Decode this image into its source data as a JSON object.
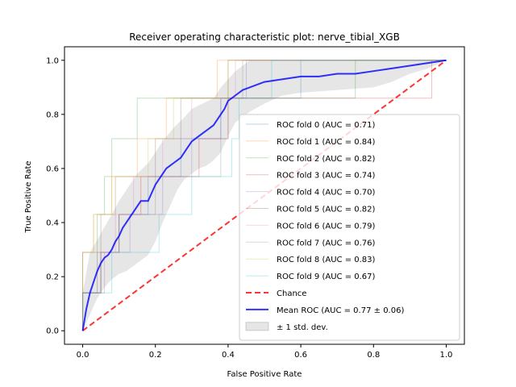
{
  "chart_data": {
    "type": "line",
    "title": "Receiver operating characteristic plot: nerve_tibial_XGB",
    "xlabel": "False Positive Rate",
    "ylabel": "True Positive Rate",
    "xlim": [
      -0.05,
      1.05
    ],
    "ylim": [
      -0.05,
      1.05
    ],
    "xticks": [
      "0.0",
      "0.2",
      "0.4",
      "0.6",
      "0.8",
      "1.0"
    ],
    "yticks": [
      "0.0",
      "0.2",
      "0.4",
      "0.6",
      "0.8",
      "1.0"
    ],
    "grid": false,
    "legend_position": "lower right",
    "series": [
      {
        "name": "ROC fold 0 (AUC = 0.71)",
        "color": "#1f77b4",
        "opacity": 0.3,
        "width": 1,
        "points": [
          [
            0,
            0
          ],
          [
            0,
            0.14
          ],
          [
            0.05,
            0.14
          ],
          [
            0.05,
            0.29
          ],
          [
            0.1,
            0.29
          ],
          [
            0.1,
            0.43
          ],
          [
            0.18,
            0.43
          ],
          [
            0.18,
            0.57
          ],
          [
            0.27,
            0.57
          ],
          [
            0.27,
            0.71
          ],
          [
            0.38,
            0.71
          ],
          [
            0.38,
            0.86
          ],
          [
            0.6,
            0.86
          ],
          [
            0.6,
            1.0
          ],
          [
            1,
            1
          ]
        ]
      },
      {
        "name": "ROC fold 1 (AUC = 0.84)",
        "color": "#ff7f0e",
        "opacity": 0.3,
        "width": 1,
        "points": [
          [
            0,
            0
          ],
          [
            0,
            0.29
          ],
          [
            0.03,
            0.29
          ],
          [
            0.03,
            0.43
          ],
          [
            0.08,
            0.43
          ],
          [
            0.08,
            0.57
          ],
          [
            0.15,
            0.57
          ],
          [
            0.15,
            0.71
          ],
          [
            0.23,
            0.71
          ],
          [
            0.23,
            0.86
          ],
          [
            0.37,
            0.86
          ],
          [
            0.37,
            1.0
          ],
          [
            1,
            1
          ]
        ]
      },
      {
        "name": "ROC fold 2 (AUC = 0.82)",
        "color": "#2ca02c",
        "opacity": 0.3,
        "width": 1,
        "points": [
          [
            0,
            0
          ],
          [
            0,
            0.14
          ],
          [
            0.04,
            0.14
          ],
          [
            0.04,
            0.43
          ],
          [
            0.06,
            0.43
          ],
          [
            0.06,
            0.57
          ],
          [
            0.08,
            0.57
          ],
          [
            0.08,
            0.71
          ],
          [
            0.15,
            0.71
          ],
          [
            0.15,
            0.86
          ],
          [
            0.75,
            0.86
          ],
          [
            0.75,
            1.0
          ],
          [
            1,
            1
          ]
        ]
      },
      {
        "name": "ROC fold 3 (AUC = 0.74)",
        "color": "#d62728",
        "opacity": 0.3,
        "width": 1,
        "points": [
          [
            0,
            0
          ],
          [
            0,
            0.14
          ],
          [
            0.05,
            0.14
          ],
          [
            0.05,
            0.29
          ],
          [
            0.1,
            0.29
          ],
          [
            0.1,
            0.43
          ],
          [
            0.16,
            0.43
          ],
          [
            0.16,
            0.57
          ],
          [
            0.32,
            0.57
          ],
          [
            0.32,
            0.71
          ],
          [
            0.4,
            0.71
          ],
          [
            0.4,
            0.86
          ],
          [
            0.96,
            0.86
          ],
          [
            0.96,
            1.0
          ],
          [
            1,
            1
          ]
        ]
      },
      {
        "name": "ROC fold 4 (AUC = 0.70)",
        "color": "#9467bd",
        "opacity": 0.3,
        "width": 1,
        "points": [
          [
            0,
            0
          ],
          [
            0,
            0.14
          ],
          [
            0.06,
            0.14
          ],
          [
            0.06,
            0.29
          ],
          [
            0.13,
            0.29
          ],
          [
            0.13,
            0.43
          ],
          [
            0.22,
            0.43
          ],
          [
            0.22,
            0.57
          ],
          [
            0.3,
            0.57
          ],
          [
            0.3,
            0.71
          ],
          [
            0.38,
            0.71
          ],
          [
            0.38,
            0.86
          ],
          [
            0.45,
            0.86
          ],
          [
            0.45,
            1.0
          ],
          [
            1,
            1
          ]
        ]
      },
      {
        "name": "ROC fold 5 (AUC = 0.82)",
        "color": "#8c564b",
        "opacity": 0.3,
        "width": 1,
        "points": [
          [
            0,
            0
          ],
          [
            0,
            0.29
          ],
          [
            0.05,
            0.29
          ],
          [
            0.05,
            0.43
          ],
          [
            0.09,
            0.43
          ],
          [
            0.09,
            0.57
          ],
          [
            0.2,
            0.57
          ],
          [
            0.2,
            0.71
          ],
          [
            0.27,
            0.71
          ],
          [
            0.27,
            0.86
          ],
          [
            0.4,
            0.86
          ],
          [
            0.4,
            1.0
          ],
          [
            1,
            1
          ]
        ]
      },
      {
        "name": "ROC fold 6 (AUC = 0.79)",
        "color": "#e377c2",
        "opacity": 0.3,
        "width": 1,
        "points": [
          [
            0,
            0
          ],
          [
            0,
            0.14
          ],
          [
            0.04,
            0.14
          ],
          [
            0.04,
            0.29
          ],
          [
            0.09,
            0.29
          ],
          [
            0.09,
            0.43
          ],
          [
            0.14,
            0.43
          ],
          [
            0.14,
            0.57
          ],
          [
            0.22,
            0.57
          ],
          [
            0.22,
            0.71
          ],
          [
            0.3,
            0.71
          ],
          [
            0.3,
            0.86
          ],
          [
            0.42,
            0.86
          ],
          [
            0.42,
            1.0
          ],
          [
            1,
            1
          ]
        ]
      },
      {
        "name": "ROC fold 7 (AUC = 0.76)",
        "color": "#7f7f7f",
        "opacity": 0.3,
        "width": 1,
        "points": [
          [
            0,
            0
          ],
          [
            0,
            0.14
          ],
          [
            0.05,
            0.14
          ],
          [
            0.05,
            0.29
          ],
          [
            0.1,
            0.29
          ],
          [
            0.1,
            0.43
          ],
          [
            0.2,
            0.43
          ],
          [
            0.2,
            0.57
          ],
          [
            0.38,
            0.57
          ],
          [
            0.38,
            0.71
          ],
          [
            0.4,
            0.71
          ],
          [
            0.4,
            0.86
          ],
          [
            0.44,
            0.86
          ],
          [
            0.44,
            1.0
          ],
          [
            1,
            1
          ]
        ]
      },
      {
        "name": "ROC fold 8 (AUC = 0.83)",
        "color": "#bcbd22",
        "opacity": 0.3,
        "width": 1,
        "points": [
          [
            0,
            0
          ],
          [
            0,
            0.29
          ],
          [
            0.03,
            0.29
          ],
          [
            0.03,
            0.43
          ],
          [
            0.08,
            0.43
          ],
          [
            0.08,
            0.57
          ],
          [
            0.18,
            0.57
          ],
          [
            0.18,
            0.71
          ],
          [
            0.25,
            0.71
          ],
          [
            0.25,
            0.86
          ],
          [
            0.4,
            0.86
          ],
          [
            0.4,
            1.0
          ],
          [
            1,
            1
          ]
        ]
      },
      {
        "name": "ROC fold 9 (AUC = 0.67)",
        "color": "#17becf",
        "opacity": 0.3,
        "width": 1,
        "points": [
          [
            0,
            0
          ],
          [
            0,
            0.14
          ],
          [
            0.08,
            0.14
          ],
          [
            0.08,
            0.29
          ],
          [
            0.21,
            0.29
          ],
          [
            0.21,
            0.43
          ],
          [
            0.3,
            0.43
          ],
          [
            0.3,
            0.57
          ],
          [
            0.41,
            0.57
          ],
          [
            0.41,
            0.71
          ],
          [
            0.43,
            0.71
          ],
          [
            0.43,
            0.86
          ],
          [
            0.52,
            0.86
          ],
          [
            0.52,
            1.0
          ],
          [
            1,
            1
          ]
        ]
      },
      {
        "name": "Chance",
        "color": "#ff0000",
        "opacity": 0.8,
        "width": 2,
        "dash": "7,4",
        "points": [
          [
            0,
            0
          ],
          [
            1,
            1
          ]
        ]
      },
      {
        "name": "Mean ROC (AUC = 0.77 ± 0.06)",
        "color": "#0000ff",
        "opacity": 0.8,
        "width": 2,
        "points": [
          [
            0,
            0
          ],
          [
            0.01,
            0.08
          ],
          [
            0.02,
            0.14
          ],
          [
            0.03,
            0.18
          ],
          [
            0.04,
            0.22
          ],
          [
            0.05,
            0.25
          ],
          [
            0.06,
            0.27
          ],
          [
            0.07,
            0.28
          ],
          [
            0.08,
            0.3
          ],
          [
            0.09,
            0.33
          ],
          [
            0.1,
            0.35
          ],
          [
            0.11,
            0.38
          ],
          [
            0.12,
            0.4
          ],
          [
            0.13,
            0.42
          ],
          [
            0.14,
            0.44
          ],
          [
            0.15,
            0.46
          ],
          [
            0.16,
            0.48
          ],
          [
            0.17,
            0.48
          ],
          [
            0.18,
            0.48
          ],
          [
            0.19,
            0.51
          ],
          [
            0.2,
            0.54
          ],
          [
            0.21,
            0.56
          ],
          [
            0.22,
            0.58
          ],
          [
            0.23,
            0.6
          ],
          [
            0.24,
            0.61
          ],
          [
            0.25,
            0.62
          ],
          [
            0.26,
            0.63
          ],
          [
            0.27,
            0.64
          ],
          [
            0.28,
            0.66
          ],
          [
            0.29,
            0.68
          ],
          [
            0.3,
            0.7
          ],
          [
            0.31,
            0.71
          ],
          [
            0.32,
            0.72
          ],
          [
            0.33,
            0.73
          ],
          [
            0.34,
            0.74
          ],
          [
            0.35,
            0.75
          ],
          [
            0.36,
            0.76
          ],
          [
            0.37,
            0.78
          ],
          [
            0.38,
            0.8
          ],
          [
            0.39,
            0.82
          ],
          [
            0.4,
            0.85
          ],
          [
            0.42,
            0.87
          ],
          [
            0.44,
            0.89
          ],
          [
            0.46,
            0.9
          ],
          [
            0.48,
            0.91
          ],
          [
            0.5,
            0.92
          ],
          [
            0.55,
            0.93
          ],
          [
            0.6,
            0.94
          ],
          [
            0.65,
            0.94
          ],
          [
            0.7,
            0.95
          ],
          [
            0.75,
            0.95
          ],
          [
            0.8,
            0.96
          ],
          [
            0.85,
            0.97
          ],
          [
            0.9,
            0.98
          ],
          [
            0.95,
            0.99
          ],
          [
            1.0,
            1.0
          ]
        ]
      }
    ],
    "band": {
      "name": "± 1 std. dev.",
      "color": "#808080",
      "opacity": 0.2,
      "upper": [
        [
          0,
          0
        ],
        [
          0,
          0.14
        ],
        [
          0.02,
          0.29
        ],
        [
          0.05,
          0.36
        ],
        [
          0.08,
          0.43
        ],
        [
          0.1,
          0.48
        ],
        [
          0.12,
          0.52
        ],
        [
          0.15,
          0.58
        ],
        [
          0.18,
          0.62
        ],
        [
          0.2,
          0.66
        ],
        [
          0.22,
          0.7
        ],
        [
          0.25,
          0.75
        ],
        [
          0.28,
          0.79
        ],
        [
          0.3,
          0.82
        ],
        [
          0.33,
          0.84
        ],
        [
          0.36,
          0.86
        ],
        [
          0.38,
          0.9
        ],
        [
          0.4,
          0.93
        ],
        [
          0.42,
          0.96
        ],
        [
          0.44,
          0.98
        ],
        [
          0.46,
          1.0
        ],
        [
          0.5,
          1.0
        ],
        [
          0.6,
          1.0
        ],
        [
          0.7,
          1.0
        ],
        [
          0.8,
          1.0
        ],
        [
          0.9,
          1.0
        ],
        [
          1.0,
          1.0
        ]
      ],
      "lower": [
        [
          1.0,
          1.0
        ],
        [
          0.95,
          0.97
        ],
        [
          0.9,
          0.95
        ],
        [
          0.85,
          0.92
        ],
        [
          0.8,
          0.9
        ],
        [
          0.7,
          0.89
        ],
        [
          0.6,
          0.88
        ],
        [
          0.55,
          0.87
        ],
        [
          0.5,
          0.84
        ],
        [
          0.46,
          0.81
        ],
        [
          0.44,
          0.79
        ],
        [
          0.42,
          0.77
        ],
        [
          0.4,
          0.72
        ],
        [
          0.38,
          0.66
        ],
        [
          0.36,
          0.63
        ],
        [
          0.34,
          0.61
        ],
        [
          0.32,
          0.6
        ],
        [
          0.3,
          0.58
        ],
        [
          0.28,
          0.56
        ],
        [
          0.26,
          0.52
        ],
        [
          0.24,
          0.46
        ],
        [
          0.22,
          0.4
        ],
        [
          0.2,
          0.33
        ],
        [
          0.18,
          0.28
        ],
        [
          0.16,
          0.26
        ],
        [
          0.14,
          0.24
        ],
        [
          0.12,
          0.22
        ],
        [
          0.1,
          0.21
        ],
        [
          0.08,
          0.19
        ],
        [
          0.06,
          0.16
        ],
        [
          0.04,
          0.12
        ],
        [
          0.02,
          0.06
        ],
        [
          0,
          0
        ]
      ]
    }
  }
}
